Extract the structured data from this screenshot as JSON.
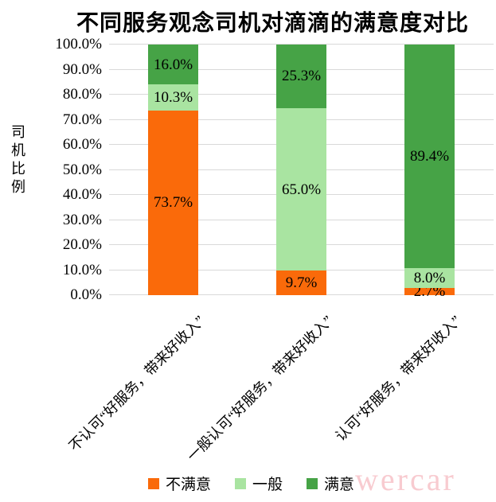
{
  "watermark": {
    "text": "wercar",
    "color": "#F8CBD0"
  },
  "colors": {
    "dissatisfied_orange": "#FA6A0A",
    "neutral_light_green": "#A9E4A1",
    "satisfied_dark_green": "#46A346",
    "gridline": "#D9D9D9",
    "text": "#000000",
    "watermark_pink": "#F8CBD0"
  },
  "chart_data": {
    "type": "bar",
    "stacked": true,
    "title": "不同服务观念司机对滴滴的满意度对比",
    "ylabel": "司机比例",
    "xlabel": "",
    "ylim": [
      0,
      100
    ],
    "ytick_interval": 10,
    "ytick_labels": [
      "100.0%",
      "90.0%",
      "80.0%",
      "70.0%",
      "60.0%",
      "50.0%",
      "40.0%",
      "30.0%",
      "20.0%",
      "10.0%",
      "0.0%"
    ],
    "grid": true,
    "legend_position": "bottom",
    "categories": [
      "不认可“好服务，带来好收入”",
      "一般认可“好服务，带来好收入”",
      "认可“好服务，带来好收入”"
    ],
    "series": [
      {
        "name": "不满意",
        "color": "#FA6A0A",
        "values": [
          73.7,
          9.7,
          2.7
        ],
        "labels": [
          "73.7%",
          "9.7%",
          "2.7%"
        ]
      },
      {
        "name": "一般",
        "color": "#A9E4A1",
        "values": [
          10.3,
          65.0,
          8.0
        ],
        "labels": [
          "10.3%",
          "65.0%",
          "8.0%"
        ]
      },
      {
        "name": "满意",
        "color": "#46A346",
        "values": [
          16.0,
          25.3,
          89.4
        ],
        "labels": [
          "16.0%",
          "25.3%",
          "89.4%"
        ]
      }
    ]
  }
}
